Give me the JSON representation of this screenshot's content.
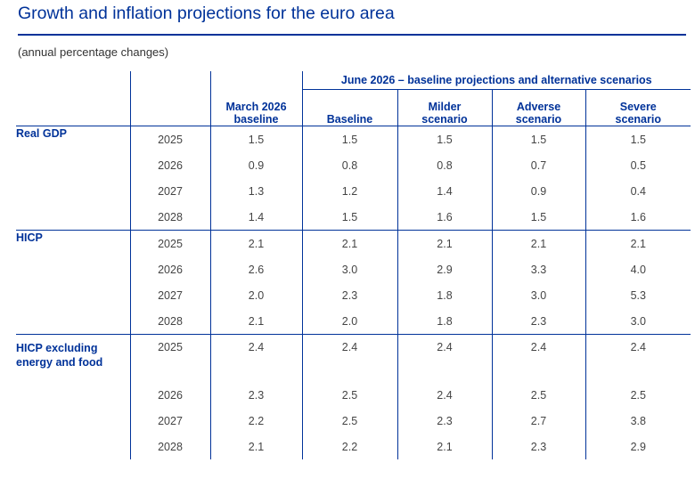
{
  "title": "Growth and inflation projections for the euro area",
  "subtitle": "(annual percentage changes)",
  "header": {
    "group_label": "June 2026 – baseline projections and alternative scenarios",
    "columns": [
      {
        "line1": "March 2026",
        "line2": "baseline"
      },
      {
        "line1": "",
        "line2": "Baseline"
      },
      {
        "line1": "Milder",
        "line2": "scenario"
      },
      {
        "line1": "Adverse",
        "line2": "scenario"
      },
      {
        "line1": "Severe",
        "line2": "scenario"
      }
    ]
  },
  "sections": [
    {
      "label_line1": "Real GDP",
      "label_line2": "",
      "rows": [
        {
          "year": "2025",
          "values": [
            "1.5",
            "1.5",
            "1.5",
            "1.5",
            "1.5"
          ]
        },
        {
          "year": "2026",
          "values": [
            "0.9",
            "0.8",
            "0.8",
            "0.7",
            "0.5"
          ]
        },
        {
          "year": "2027",
          "values": [
            "1.3",
            "1.2",
            "1.4",
            "0.9",
            "0.4"
          ]
        },
        {
          "year": "2028",
          "values": [
            "1.4",
            "1.5",
            "1.6",
            "1.5",
            "1.6"
          ]
        }
      ]
    },
    {
      "label_line1": "HICP",
      "label_line2": "",
      "rows": [
        {
          "year": "2025",
          "values": [
            "2.1",
            "2.1",
            "2.1",
            "2.1",
            "2.1"
          ]
        },
        {
          "year": "2026",
          "values": [
            "2.6",
            "3.0",
            "2.9",
            "3.3",
            "4.0"
          ]
        },
        {
          "year": "2027",
          "values": [
            "2.0",
            "2.3",
            "1.8",
            "3.0",
            "5.3"
          ]
        },
        {
          "year": "2028",
          "values": [
            "2.1",
            "2.0",
            "1.8",
            "2.3",
            "3.0"
          ]
        }
      ]
    },
    {
      "label_line1": "HICP excluding",
      "label_line2": "energy and food",
      "rows": [
        {
          "year": "2025",
          "values": [
            "2.4",
            "2.4",
            "2.4",
            "2.4",
            "2.4"
          ]
        },
        {
          "year": "2026",
          "values": [
            "2.3",
            "2.5",
            "2.4",
            "2.5",
            "2.5"
          ]
        },
        {
          "year": "2027",
          "values": [
            "2.2",
            "2.5",
            "2.3",
            "2.7",
            "3.8"
          ]
        },
        {
          "year": "2028",
          "values": [
            "2.1",
            "2.2",
            "2.1",
            "2.3",
            "2.9"
          ]
        }
      ]
    }
  ]
}
